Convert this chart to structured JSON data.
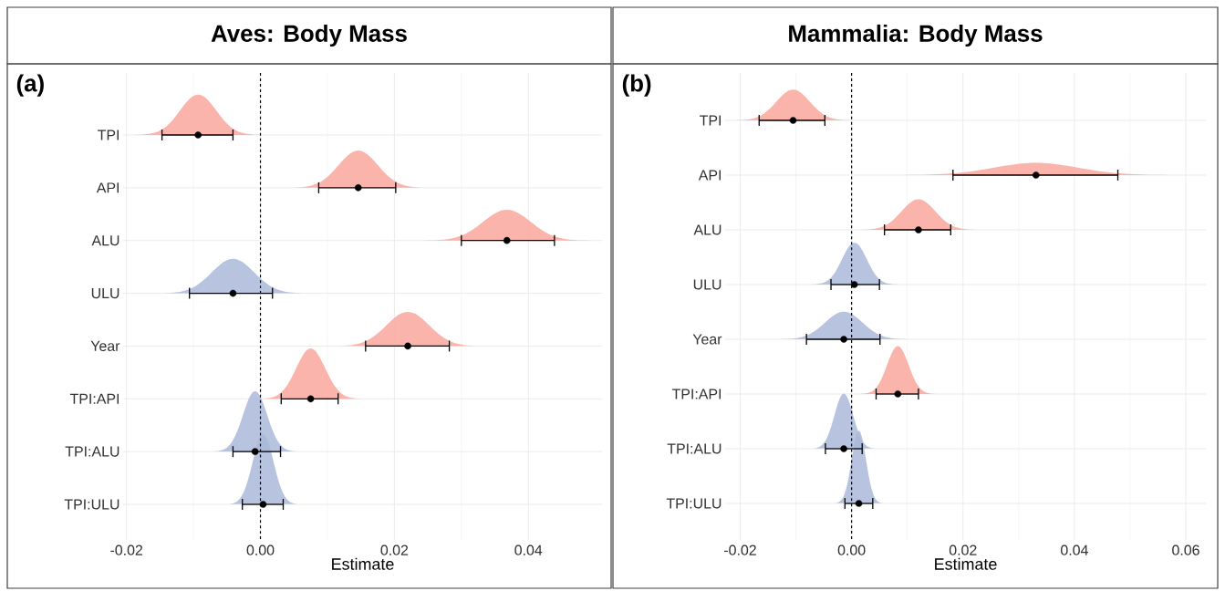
{
  "chart_data": [
    {
      "type": "scatter",
      "orientation": "horizontal",
      "title": "Aves: Body Mass",
      "xlabel": "Estimate",
      "annotations": [
        "(a)"
      ],
      "categories": [
        "TPI",
        "API",
        "ALU",
        "ULU",
        "Year",
        "TPI:API",
        "TPI:ALU",
        "TPI:ULU"
      ],
      "values": [
        -0.0093,
        0.0146,
        0.0368,
        -0.0041,
        0.022,
        0.0075,
        -0.0008,
        0.0004
      ],
      "errors": [
        [
          -0.0147,
          -0.0041
        ],
        [
          0.0087,
          0.0202
        ],
        [
          0.03,
          0.0439
        ],
        [
          -0.0106,
          0.0018
        ],
        [
          0.0157,
          0.0282
        ],
        [
          0.0031,
          0.0116
        ],
        [
          -0.0041,
          0.003
        ],
        [
          -0.0027,
          0.0034
        ]
      ],
      "xlim": [
        -0.0205,
        0.051
      ],
      "xticks": [
        -0.02,
        {
          "value": 0,
          "label": "0.00"
        },
        0.02,
        0.04
      ],
      "ref_lines": [
        {
          "axis": "x",
          "value": 0,
          "line_style": "dashed"
        }
      ],
      "grid": true
    },
    {
      "type": "scatter",
      "orientation": "horizontal",
      "title": "Mammalia: Body Mass",
      "xlabel": "Estimate",
      "annotations": [
        "(b)"
      ],
      "categories": [
        "TPI",
        "API",
        "ALU",
        "ULU",
        "Year",
        "TPI:API",
        "TPI:ALU",
        "TPI:ULU"
      ],
      "values": [
        -0.0105,
        0.0331,
        0.012,
        0.0005,
        -0.0014,
        0.0083,
        -0.0014,
        0.0013
      ],
      "errors": [
        [
          -0.0166,
          -0.0048
        ],
        [
          0.0182,
          0.0478
        ],
        [
          0.0059,
          0.0178
        ],
        [
          -0.0037,
          0.005
        ],
        [
          -0.0081,
          0.0051
        ],
        [
          0.0044,
          0.012
        ],
        [
          -0.0047,
          0.0019
        ],
        [
          -0.0012,
          0.0038
        ]
      ],
      "xlim": [
        -0.0227,
        0.0636
      ],
      "xticks": [
        -0.02,
        {
          "value": 0,
          "label": "0.00"
        },
        0.02,
        0.04,
        0.06
      ],
      "ref_lines": [
        {
          "axis": "x",
          "value": 0,
          "line_style": "dashed"
        }
      ],
      "grid": true
    }
  ]
}
